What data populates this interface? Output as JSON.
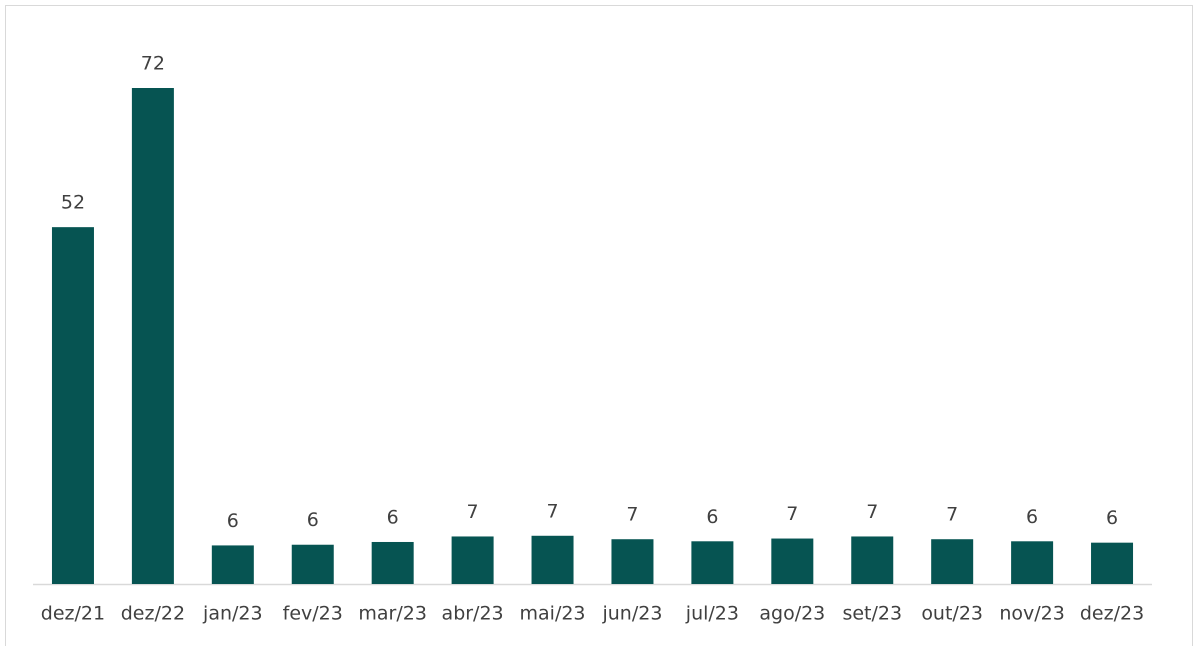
{
  "chart_data": {
    "type": "bar",
    "categories": [
      "dez/21",
      "dez/22",
      "jan/23",
      "fev/23",
      "mar/23",
      "abr/23",
      "mai/23",
      "jun/23",
      "jul/23",
      "ago/23",
      "set/23",
      "out/23",
      "nov/23",
      "dez/23"
    ],
    "values": [
      51.8,
      72,
      5.6,
      5.7,
      6.1,
      6.9,
      7.0,
      6.5,
      6.2,
      6.6,
      6.9,
      6.5,
      6.2,
      6.0
    ],
    "value_labels": [
      "52",
      "72",
      "6",
      "6",
      "6",
      "7",
      "7",
      "7",
      "6",
      "7",
      "7",
      "7",
      "6",
      "6"
    ],
    "color": "#065452"
  }
}
